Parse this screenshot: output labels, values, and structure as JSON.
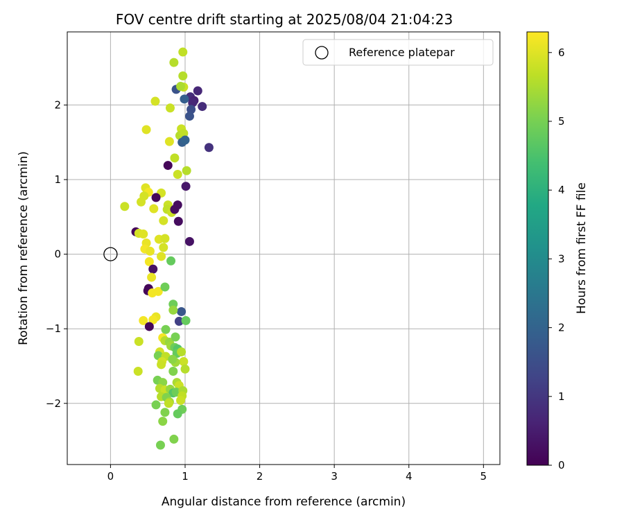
{
  "chart_data": {
    "type": "scatter",
    "title": "FOV centre drift starting at 2025/08/04 21:04:23",
    "xlabel": "Angular distance from reference (arcmin)",
    "ylabel": "Rotation from reference (arcmin)",
    "xlim": [
      -0.58,
      5.22
    ],
    "ylim": [
      -2.82,
      2.98
    ],
    "xticks": [
      0,
      1,
      2,
      3,
      4,
      5
    ],
    "yticks": [
      -2,
      -1,
      0,
      1,
      2
    ],
    "grid": true,
    "legend": {
      "position": "top-right",
      "entries": [
        "Reference platepar"
      ]
    },
    "reference_point": {
      "label": "Reference platepar",
      "x": 0,
      "y": 0,
      "marker": "open-circle"
    },
    "colorbar": {
      "label": "Hours from first FF file",
      "colormap": "viridis",
      "range": [
        0,
        6.3
      ],
      "ticks": [
        0,
        1,
        2,
        3,
        4,
        5,
        6
      ]
    },
    "points": [
      [
        0.97,
        2.71,
        5.7
      ],
      [
        0.85,
        2.57,
        5.6
      ],
      [
        0.88,
        2.21,
        1.6
      ],
      [
        0.97,
        2.39,
        5.6
      ],
      [
        0.98,
        2.24,
        5.8
      ],
      [
        0.94,
        2.25,
        5.5
      ],
      [
        1.07,
        2.11,
        0.8
      ],
      [
        1.12,
        2.06,
        0.6
      ],
      [
        1.1,
        2.03,
        0.7
      ],
      [
        1.17,
        2.19,
        0.7
      ],
      [
        1.23,
        1.98,
        0.8
      ],
      [
        0.99,
        2.08,
        1.9
      ],
      [
        1.08,
        1.94,
        1.5
      ],
      [
        1.06,
        1.85,
        1.6
      ],
      [
        0.6,
        2.05,
        5.9
      ],
      [
        0.8,
        1.96,
        5.8
      ],
      [
        0.95,
        1.68,
        5.8
      ],
      [
        0.93,
        1.59,
        5.6
      ],
      [
        0.98,
        1.62,
        5.7
      ],
      [
        0.96,
        1.5,
        1.9
      ],
      [
        1.0,
        1.53,
        2.0
      ],
      [
        0.48,
        1.67,
        6.0
      ],
      [
        0.79,
        1.51,
        6.0
      ],
      [
        1.32,
        1.43,
        0.9
      ],
      [
        0.86,
        1.29,
        5.7
      ],
      [
        0.77,
        1.19,
        0.1
      ],
      [
        1.02,
        1.12,
        5.6
      ],
      [
        0.9,
        1.07,
        5.8
      ],
      [
        1.01,
        0.91,
        0.4
      ],
      [
        0.47,
        0.89,
        6.0
      ],
      [
        0.51,
        0.83,
        6.2
      ],
      [
        0.68,
        0.82,
        5.9
      ],
      [
        0.45,
        0.78,
        5.9
      ],
      [
        0.61,
        0.76,
        0.1
      ],
      [
        0.41,
        0.7,
        5.9
      ],
      [
        0.19,
        0.64,
        5.8
      ],
      [
        0.58,
        0.61,
        6.0
      ],
      [
        0.77,
        0.66,
        5.8
      ],
      [
        0.76,
        0.6,
        5.7
      ],
      [
        0.82,
        0.56,
        5.8
      ],
      [
        0.86,
        0.6,
        0.2
      ],
      [
        0.9,
        0.66,
        0.2
      ],
      [
        0.71,
        0.45,
        5.9
      ],
      [
        0.91,
        0.44,
        0.2
      ],
      [
        0.34,
        0.3,
        0.1
      ],
      [
        0.38,
        0.28,
        5.9
      ],
      [
        0.44,
        0.27,
        6.0
      ],
      [
        1.06,
        0.17,
        0.3
      ],
      [
        0.65,
        0.2,
        6.0
      ],
      [
        0.73,
        0.21,
        5.9
      ],
      [
        0.48,
        0.15,
        6.1
      ],
      [
        0.46,
        0.07,
        6.2
      ],
      [
        0.53,
        0.04,
        6.1
      ],
      [
        0.71,
        0.09,
        5.9
      ],
      [
        0.52,
        -0.1,
        6.2
      ],
      [
        0.68,
        -0.03,
        6.0
      ],
      [
        0.57,
        -0.2,
        0.3
      ],
      [
        0.81,
        -0.09,
        4.8
      ],
      [
        0.55,
        -0.31,
        6.1
      ],
      [
        0.51,
        -0.46,
        0.1
      ],
      [
        0.5,
        -0.49,
        0.1
      ],
      [
        0.56,
        -0.52,
        6.2
      ],
      [
        0.64,
        -0.5,
        6.2
      ],
      [
        0.73,
        -0.44,
        4.9
      ],
      [
        0.84,
        -0.67,
        4.9
      ],
      [
        0.95,
        -0.77,
        1.7
      ],
      [
        0.84,
        -0.75,
        5.3
      ],
      [
        0.61,
        -0.84,
        6.1
      ],
      [
        0.57,
        -0.88,
        6.2
      ],
      [
        0.44,
        -0.89,
        6.2
      ],
      [
        0.52,
        -0.97,
        0.1
      ],
      [
        0.92,
        -0.9,
        1.2
      ],
      [
        1.01,
        -0.89,
        4.8
      ],
      [
        0.74,
        -1.01,
        5.0
      ],
      [
        0.38,
        -1.17,
        5.8
      ],
      [
        0.7,
        -1.12,
        6.2
      ],
      [
        0.73,
        -1.16,
        5.6
      ],
      [
        0.79,
        -1.18,
        5.3
      ],
      [
        0.87,
        -1.11,
        5.0
      ],
      [
        0.81,
        -1.23,
        5.4
      ],
      [
        0.86,
        -1.25,
        4.9
      ],
      [
        0.9,
        -1.27,
        4.6
      ],
      [
        0.66,
        -1.31,
        5.9
      ],
      [
        0.64,
        -1.36,
        5.0
      ],
      [
        0.74,
        -1.37,
        5.7
      ],
      [
        0.89,
        -1.33,
        4.8
      ],
      [
        0.95,
        -1.31,
        5.6
      ],
      [
        0.98,
        -1.44,
        5.8
      ],
      [
        0.87,
        -1.45,
        5.4
      ],
      [
        0.69,
        -1.44,
        5.9
      ],
      [
        0.68,
        -1.48,
        5.8
      ],
      [
        0.83,
        -1.41,
        5.2
      ],
      [
        1.0,
        -1.54,
        5.6
      ],
      [
        0.37,
        -1.57,
        5.8
      ],
      [
        0.84,
        -1.57,
        5.1
      ],
      [
        0.63,
        -1.69,
        5.0
      ],
      [
        0.7,
        -1.72,
        5.2
      ],
      [
        0.89,
        -1.72,
        5.5
      ],
      [
        0.92,
        -1.76,
        5.8
      ],
      [
        0.66,
        -1.8,
        5.6
      ],
      [
        0.73,
        -1.82,
        5.8
      ],
      [
        0.8,
        -1.81,
        5.3
      ],
      [
        0.84,
        -1.86,
        4.6
      ],
      [
        0.88,
        -1.85,
        4.9
      ],
      [
        0.97,
        -1.83,
        5.5
      ],
      [
        0.96,
        -1.9,
        5.7
      ],
      [
        0.68,
        -1.91,
        5.6
      ],
      [
        0.75,
        -1.92,
        5.1
      ],
      [
        0.79,
        -1.98,
        5.4
      ],
      [
        0.94,
        -1.96,
        5.8
      ],
      [
        0.78,
        -2.0,
        5.7
      ],
      [
        0.61,
        -2.02,
        5.0
      ],
      [
        0.73,
        -2.12,
        5.1
      ],
      [
        0.96,
        -2.08,
        4.9
      ],
      [
        0.9,
        -2.14,
        4.8
      ],
      [
        0.7,
        -2.24,
        5.2
      ],
      [
        0.85,
        -2.48,
        5.1
      ],
      [
        0.67,
        -2.56,
        5.0
      ]
    ]
  }
}
